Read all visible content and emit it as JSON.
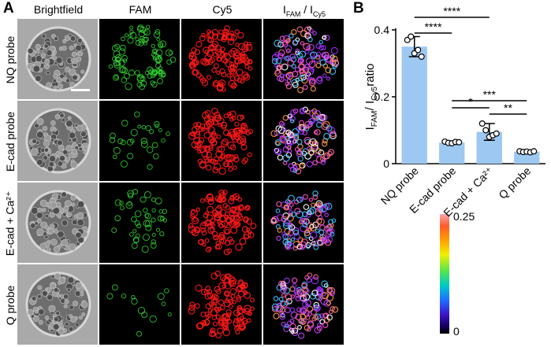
{
  "panel_a": {
    "letter": "A",
    "columns": [
      "Brightfield",
      "FAM",
      "Cy5",
      "I_FAM / I_Cy5"
    ],
    "column_ratio_label": {
      "i1": "I",
      "s1": "FAM",
      "sep": " / ",
      "i2": "I",
      "s2": "Cy5"
    },
    "rows": [
      "NQ probe",
      "E-cad probe",
      "E-cad + Ca²⁺",
      "Q probe"
    ],
    "colorbar": {
      "max": "0.25",
      "min": "0"
    },
    "colors": {
      "fam": "#33d633",
      "cy5": "#ff1a1a"
    }
  },
  "panel_b": {
    "letter": "B",
    "ylabel": {
      "i1": "I",
      "s1": "FAM",
      "sep": " / ",
      "i2": "I",
      "s2": "Cy5",
      "rest": " ratio"
    },
    "significance": [
      "****",
      "****",
      "***",
      "*",
      "**"
    ]
  },
  "chart_data": {
    "type": "bar",
    "categories": [
      "NQ probe",
      "E-cad probe",
      "E-cad + Ca²⁺",
      "Q probe"
    ],
    "values": [
      0.35,
      0.063,
      0.095,
      0.036
    ],
    "error": [
      0.03,
      0.005,
      0.025,
      0.003
    ],
    "points": [
      [
        0.37,
        0.38,
        0.33,
        0.34,
        0.32
      ],
      [
        0.066,
        0.062,
        0.061,
        0.065,
        0.064
      ],
      [
        0.12,
        0.1,
        0.08,
        0.085,
        0.09
      ],
      [
        0.037,
        0.035,
        0.036,
        0.034,
        0.037
      ]
    ],
    "ylim": [
      0,
      0.4
    ],
    "yticks": [
      "0",
      "0.2",
      "0.4"
    ],
    "bar_color": "#9cc8f2"
  }
}
